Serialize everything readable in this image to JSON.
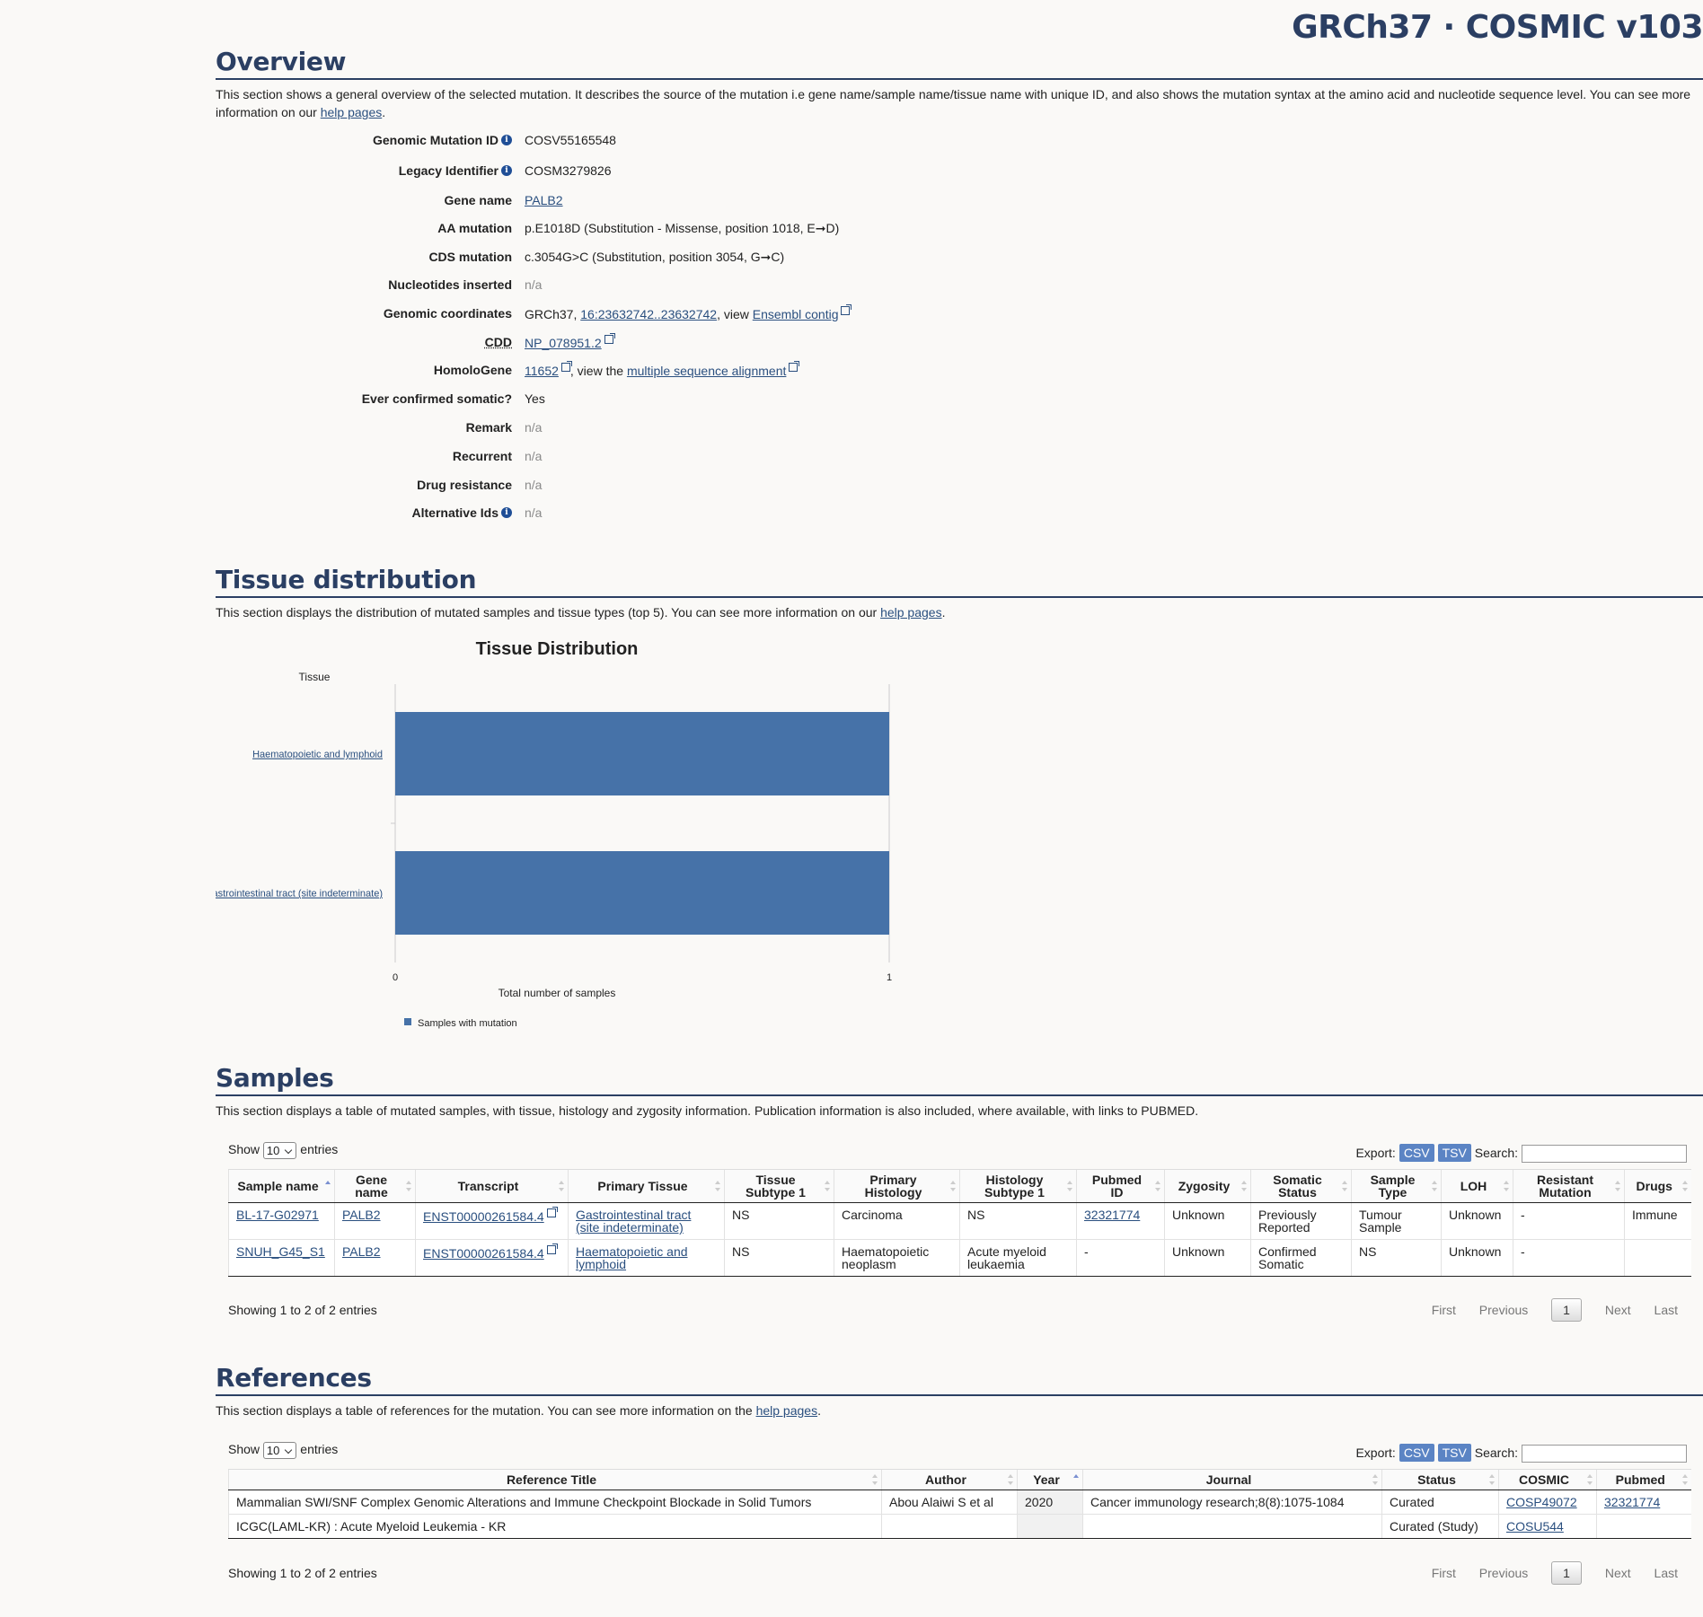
{
  "header": {
    "site_title": "GRCh37 · COSMIC v103"
  },
  "overview": {
    "heading": "Overview",
    "desc_before": "This section shows a general overview of the selected mutation. It describes the source of the mutation i.e gene name/sample name/tissue name with unique ID, and also shows the mutation syntax at the amino acid and nucleotide sequence level. You can see more information on our ",
    "desc_link": "help pages",
    "desc_after": ".",
    "rows": [
      {
        "label": "Genomic Mutation ID",
        "value": "COSV55165548"
      },
      {
        "label": "Legacy Identifier",
        "value": "COSM3279826"
      },
      {
        "label": "Gene name",
        "link": "PALB2"
      },
      {
        "label": "AA mutation",
        "value": "p.E1018D (Substitution - Missense, position 1018, E➞D)"
      },
      {
        "label": "CDS mutation",
        "value": "c.3054G>C (Substitution, position 3054, G➞C)"
      },
      {
        "label": "Nucleotides inserted",
        "value": "n/a"
      },
      {
        "label": "Genomic coordinates",
        "prefix": "GRCh37, ",
        "link1": "16:23632742..23632742",
        "mid": ", view ",
        "link2": "Ensembl contig"
      },
      {
        "label": "CDD",
        "link": "NP_078951.2"
      },
      {
        "label": "HomoloGene",
        "link1": "11652",
        "mid": ", view the ",
        "link2": "multiple sequence alignment"
      },
      {
        "label": "Ever confirmed somatic?",
        "value": "Yes"
      },
      {
        "label": "Remark",
        "value": "n/a"
      },
      {
        "label": "Recurrent",
        "value": "n/a"
      },
      {
        "label": "Drug resistance",
        "value": "n/a"
      },
      {
        "label": "Alternative Ids",
        "value": "n/a"
      }
    ]
  },
  "tissue": {
    "heading": "Tissue distribution",
    "desc_before": "This section displays the distribution of mutated samples and tissue types (top 5). You can see more information on our ",
    "desc_link": "help pages",
    "desc_after": "."
  },
  "chart_data": {
    "type": "bar",
    "orientation": "horizontal",
    "title": "Tissue Distribution",
    "ylabel": "Tissue",
    "xlabel": "Total number of samples",
    "categories": [
      "Haematopoietic and lymphoid",
      "Gastrointestinal tract (site indeterminate)"
    ],
    "series": [
      {
        "name": "Samples with mutation",
        "values": [
          1,
          1
        ],
        "color": "#4672a8"
      }
    ],
    "xlim": [
      0,
      1
    ],
    "xticks": [
      "0",
      "1"
    ],
    "legend_position": "bottom-left"
  },
  "samples": {
    "heading": "Samples",
    "desc": "This section displays a table of mutated samples, with tissue, histology and zygosity information. Publication information is also included, where available, with links to PUBMED.",
    "show_label": "Show",
    "show_value": "10",
    "entries_label": "entries",
    "export_label": "Export:",
    "csv": "CSV",
    "tsv": "TSV",
    "search_label": "Search:",
    "columns": [
      "Sample name",
      "Gene name",
      "Transcript",
      "Primary Tissue",
      "Tissue Subtype 1",
      "Primary Histology",
      "Histology Subtype 1",
      "Pubmed ID",
      "Zygosity",
      "Somatic Status",
      "Sample Type",
      "LOH",
      "Resistant Mutation",
      "Drugs"
    ],
    "rows": [
      [
        "BL-17-G02971",
        "PALB2",
        "ENST00000261584.4",
        "Gastrointestinal tract (site indeterminate)",
        "NS",
        "Carcinoma",
        "NS",
        "32321774",
        "Unknown",
        "Previously Reported",
        "Tumour Sample",
        "Unknown",
        "-",
        "Immune"
      ],
      [
        "SNUH_G45_S1",
        "PALB2",
        "ENST00000261584.4",
        "Haematopoietic and lymphoid",
        "NS",
        "Haematopoietic neoplasm",
        "Acute myeloid leukaemia",
        "-",
        "Unknown",
        "Confirmed Somatic",
        "NS",
        "Unknown",
        "-",
        ""
      ]
    ],
    "info": "Showing 1 to 2 of 2 entries",
    "pager": {
      "first": "First",
      "previous": "Previous",
      "page": "1",
      "next": "Next",
      "last": "Last"
    }
  },
  "references": {
    "heading": "References",
    "desc_before": "This section displays a table of references for the mutation. You can see more information on the ",
    "desc_link": "help pages",
    "desc_after": ".",
    "show_label": "Show",
    "show_value": "10",
    "entries_label": "entries",
    "export_label": "Export:",
    "csv": "CSV",
    "tsv": "TSV",
    "search_label": "Search:",
    "columns": [
      "Reference Title",
      "Author",
      "Year",
      "Journal",
      "Status",
      "COSMIC",
      "Pubmed"
    ],
    "rows": [
      [
        "Mammalian SWI/SNF Complex Genomic Alterations and Immune Checkpoint Blockade in Solid Tumors",
        "Abou Alaiwi S et al",
        "2020",
        "Cancer immunology research;8(8):1075-1084",
        "Curated",
        "COSP49072",
        "32321774"
      ],
      [
        "ICGC(LAML-KR) : Acute Myeloid Leukemia - KR",
        "",
        "",
        "",
        "Curated (Study)",
        "COSU544",
        ""
      ]
    ],
    "info": "Showing 1 to 2 of 2 entries",
    "pager": {
      "first": "First",
      "previous": "Previous",
      "page": "1",
      "next": "Next",
      "last": "Last"
    }
  }
}
